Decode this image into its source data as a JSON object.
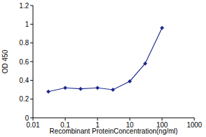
{
  "chart_data": {
    "type": "line",
    "x_label": "Recombinant ProteinConcentration(ng/ml)",
    "y_label": "OD 450",
    "log": "x",
    "grid": false,
    "x": [
      0.03,
      0.1,
      0.3,
      1,
      3,
      10,
      30,
      100
    ],
    "series": [
      {
        "name": null,
        "color": "#1f2a8c",
        "marker": "diamond",
        "line_style": "solid",
        "values": [
          0.28,
          0.32,
          0.31,
          0.32,
          0.3,
          0.39,
          0.58,
          0.96
        ]
      }
    ],
    "xlim": [
      0.01,
      1000
    ],
    "xticks": [
      0.01,
      0.1,
      1,
      10,
      100,
      1000
    ],
    "ylim": [
      0,
      1.2
    ],
    "yticks": [
      0,
      0.2,
      0.4,
      0.6,
      0.8,
      1,
      1.2
    ]
  }
}
